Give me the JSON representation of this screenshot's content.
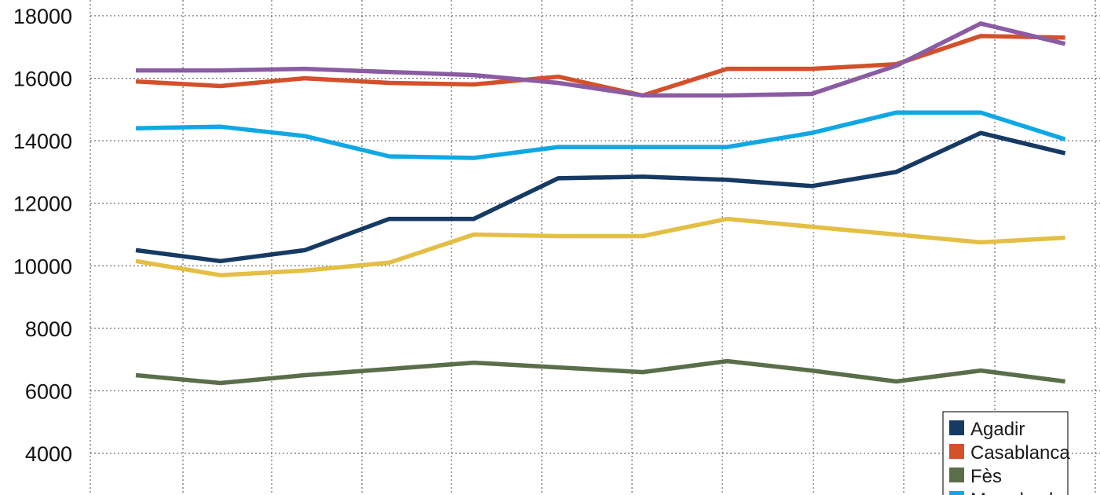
{
  "chart_data": {
    "type": "line",
    "title": "",
    "xlabel": "",
    "ylabel": "",
    "ylim": [
      3000,
      18500
    ],
    "yticks": [
      4000,
      6000,
      8000,
      10000,
      12000,
      14000,
      16000,
      18000
    ],
    "grid": true,
    "legend_position": "bottom-right",
    "series": [
      {
        "name": "Agadir",
        "color": "#163a63",
        "values": [
          10500,
          10150,
          10500,
          11500,
          11500,
          12800,
          12850,
          12750,
          12550,
          13000,
          14250,
          13600
        ]
      },
      {
        "name": "Casablanca",
        "color": "#d4502a",
        "values": [
          15900,
          15750,
          16000,
          15850,
          15800,
          16050,
          15450,
          16300,
          16300,
          16450,
          17350,
          17300
        ]
      },
      {
        "name": "Fès",
        "color": "#5a6e4a",
        "values": [
          6500,
          6250,
          6500,
          6700,
          6900,
          6750,
          6600,
          6950,
          6650,
          6300,
          6650,
          6300
        ]
      },
      {
        "name": "Marrakech",
        "color": "#10a8e4",
        "values": [
          14400,
          14450,
          14150,
          13500,
          13450,
          13800,
          13800,
          13800,
          14250,
          14900,
          14900,
          14050
        ]
      },
      {
        "name": "",
        "color": "#e4bf45",
        "values": [
          10150,
          9700,
          9850,
          10100,
          11000,
          10950,
          10950,
          11500,
          11250,
          11000,
          10750,
          10900
        ]
      },
      {
        "name": "",
        "color": "#8a5ca3",
        "values": [
          16250,
          16250,
          16300,
          16200,
          16100,
          15850,
          15450,
          15450,
          15500,
          16400,
          17750,
          17100
        ]
      }
    ]
  }
}
